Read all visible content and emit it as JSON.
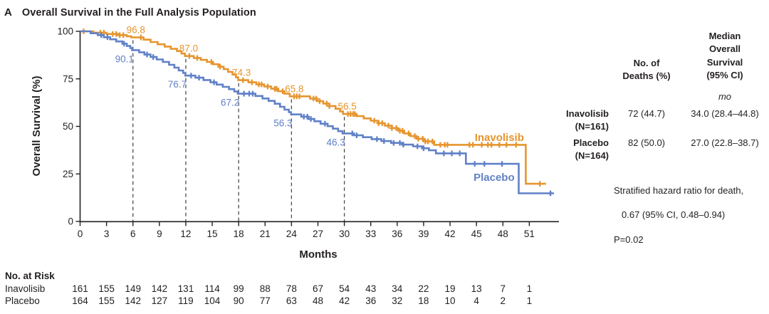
{
  "figure": {
    "panel_label": "A",
    "title": "Overall Survival in the Full Analysis Population"
  },
  "chart_data": {
    "type": "line",
    "subtype": "kaplan-meier-step",
    "title": "Overall Survival in the Full Analysis Population",
    "xlabel": "Months",
    "ylabel": "Overall Survival (%)",
    "xlim": [
      0,
      54.3
    ],
    "ylim": [
      0,
      100
    ],
    "xticks": [
      0,
      3,
      6,
      9,
      12,
      15,
      18,
      21,
      24,
      27,
      30,
      33,
      36,
      39,
      42,
      45,
      48,
      51
    ],
    "yticks": [
      0,
      25,
      50,
      75,
      100
    ],
    "grid": false,
    "dashed_reference_months": [
      6,
      12,
      18,
      24,
      30
    ],
    "series": [
      {
        "name": "Inavolisib",
        "color": "#E6952F",
        "end_month": 52.9,
        "milestone_side": "above",
        "label_pos": {
          "month": 47.6,
          "pct": 42.3
        },
        "milestones": [
          {
            "month": 6,
            "text": "96.8"
          },
          {
            "month": 12,
            "text": "87.0"
          },
          {
            "month": 18,
            "text": "74.3"
          },
          {
            "month": 24,
            "text": "65.8"
          },
          {
            "month": 30,
            "text": "56.5"
          }
        ],
        "steps": [
          [
            0,
            100
          ],
          [
            1.5,
            99.3
          ],
          [
            3,
            98.6
          ],
          [
            4.3,
            98
          ],
          [
            5.3,
            97.4
          ],
          [
            5.8,
            96.8
          ],
          [
            7.2,
            95.6
          ],
          [
            8,
            94.4
          ],
          [
            8.8,
            93.2
          ],
          [
            9.6,
            92
          ],
          [
            10.3,
            90.8
          ],
          [
            11,
            89.6
          ],
          [
            11.5,
            88.3
          ],
          [
            11.9,
            87
          ],
          [
            12.9,
            86
          ],
          [
            13.7,
            85
          ],
          [
            14.4,
            83.9
          ],
          [
            15.1,
            82.7
          ],
          [
            15.7,
            81.4
          ],
          [
            16.3,
            80.1
          ],
          [
            16.8,
            78.7
          ],
          [
            17.3,
            77.3
          ],
          [
            17.7,
            75.8
          ],
          [
            17.95,
            74.3
          ],
          [
            19.1,
            73.2
          ],
          [
            20,
            72.1
          ],
          [
            20.9,
            71
          ],
          [
            21.7,
            69.8
          ],
          [
            22.5,
            68.5
          ],
          [
            23.2,
            67.2
          ],
          [
            23.8,
            65.8
          ],
          [
            26.1,
            64.6
          ],
          [
            26.9,
            63.3
          ],
          [
            27.6,
            62
          ],
          [
            28.3,
            60.7
          ],
          [
            29,
            59.3
          ],
          [
            29.5,
            57.9
          ],
          [
            29.85,
            56.5
          ],
          [
            31.4,
            55.4
          ],
          [
            32.2,
            54.2
          ],
          [
            33,
            53
          ],
          [
            33.8,
            51.7
          ],
          [
            34.6,
            50.4
          ],
          [
            35.4,
            49.1
          ],
          [
            36.1,
            47.7
          ],
          [
            36.8,
            46.3
          ],
          [
            37.5,
            44.9
          ],
          [
            38.2,
            43.5
          ],
          [
            39,
            42.1
          ],
          [
            40.2,
            40.3
          ],
          [
            50.6,
            19.8
          ]
        ],
        "censor_times": [
          0.4,
          2.3,
          2.7,
          3.7,
          4.1,
          4.5,
          4.9,
          6.9,
          12.4,
          13.3,
          14.9,
          15.9,
          18.5,
          19.5,
          20.3,
          20.6,
          21.3,
          22.1,
          22.3,
          23,
          24.3,
          24.6,
          24.9,
          26.5,
          26.8,
          27.2,
          28,
          28.3,
          30.4,
          30.7,
          31,
          31.2,
          33.4,
          33.9,
          34.3,
          35,
          35.4,
          35.9,
          36.3,
          36.6,
          37.3,
          38,
          38.4,
          38.9,
          39.2,
          39.5,
          40,
          40.9,
          41.4,
          41.7,
          44.2,
          44.6,
          45.6,
          46.3,
          46.7,
          47.6,
          48.4,
          49.5,
          52.2
        ]
      },
      {
        "name": "Placebo",
        "color": "#6081C7",
        "end_month": 53.8,
        "milestone_side": "below",
        "label_pos": {
          "month": 47.0,
          "pct": 21.3
        },
        "milestones": [
          {
            "month": 6,
            "text": "90.1"
          },
          {
            "month": 12,
            "text": "76.7"
          },
          {
            "month": 18,
            "text": "67.2"
          },
          {
            "month": 24,
            "text": "56.3"
          },
          {
            "month": 30,
            "text": "46.3"
          }
        ],
        "steps": [
          [
            0,
            100
          ],
          [
            1.2,
            99
          ],
          [
            2,
            98
          ],
          [
            2.7,
            96.9
          ],
          [
            3.4,
            95.8
          ],
          [
            4.1,
            94.7
          ],
          [
            4.8,
            93.5
          ],
          [
            5.3,
            92.3
          ],
          [
            5.7,
            91.2
          ],
          [
            5.9,
            90.1
          ],
          [
            6.7,
            89
          ],
          [
            7.3,
            87.8
          ],
          [
            8,
            86.5
          ],
          [
            8.7,
            85.2
          ],
          [
            9.4,
            83.9
          ],
          [
            10.1,
            82.4
          ],
          [
            10.7,
            80.9
          ],
          [
            11.2,
            79.4
          ],
          [
            11.7,
            78.1
          ],
          [
            11.95,
            76.7
          ],
          [
            13.1,
            75.6
          ],
          [
            14,
            74.4
          ],
          [
            14.8,
            73.2
          ],
          [
            15.5,
            72
          ],
          [
            16.2,
            70.8
          ],
          [
            16.9,
            69.6
          ],
          [
            17.5,
            68.4
          ],
          [
            17.9,
            67.2
          ],
          [
            19.9,
            66
          ],
          [
            20.7,
            64.7
          ],
          [
            21.4,
            63.4
          ],
          [
            22.1,
            61.9
          ],
          [
            22.7,
            60.3
          ],
          [
            23.2,
            58.8
          ],
          [
            23.7,
            57.5
          ],
          [
            23.95,
            56.3
          ],
          [
            25.1,
            55.1
          ],
          [
            25.9,
            53.9
          ],
          [
            26.6,
            52.7
          ],
          [
            27.3,
            51.4
          ],
          [
            28.1,
            50.1
          ],
          [
            28.7,
            48.8
          ],
          [
            29.3,
            47.5
          ],
          [
            29.8,
            46.3
          ],
          [
            31.1,
            45.3
          ],
          [
            32.1,
            44.3
          ],
          [
            33.1,
            43.3
          ],
          [
            34.2,
            42.3
          ],
          [
            35.3,
            41.3
          ],
          [
            36.6,
            40.4
          ],
          [
            37.8,
            39.5
          ],
          [
            38.8,
            38.5
          ],
          [
            39.6,
            37.4
          ],
          [
            40.4,
            35.8
          ],
          [
            43.8,
            30.3
          ],
          [
            49.8,
            14.8
          ]
        ],
        "censor_times": [
          2.4,
          3.1,
          5,
          7.6,
          8.3,
          12.6,
          13.5,
          15.2,
          18.6,
          19.2,
          19.6,
          25.4,
          25.8,
          26.2,
          27.8,
          30.9,
          31.4,
          33.7,
          34.5,
          35.6,
          36.3,
          36.7,
          38.3,
          39,
          41.3,
          42.2,
          43.1,
          44.8,
          45.9,
          47.9,
          53.4
        ]
      }
    ]
  },
  "stats": {
    "deaths_header": "No. of\nDeaths (%)",
    "median_header": "Median\nOverall\nSurvival\n(95% CI)",
    "unit": "mo",
    "rows": [
      {
        "label": "Inavolisib\n(N=161)",
        "deaths": "72 (44.7)",
        "median": "34.0 (28.4–44.8)"
      },
      {
        "label": "Placebo\n(N=164)",
        "deaths": "82 (50.0)",
        "median": "27.0 (22.8–38.7)"
      }
    ],
    "hazard_line1": "Stratified hazard ratio for death,",
    "hazard_line2": "0.67 (95% CI, 0.48–0.94)",
    "hazard_line3": "P=0.02"
  },
  "at_risk": {
    "header": "No. at Risk",
    "months": [
      0,
      3,
      6,
      9,
      12,
      15,
      18,
      21,
      24,
      27,
      30,
      33,
      36,
      39,
      42,
      45,
      48,
      51
    ],
    "rows": [
      {
        "label": "Inavolisib",
        "values": [
          161,
          155,
          149,
          142,
          131,
          114,
          99,
          88,
          78,
          67,
          54,
          43,
          34,
          22,
          19,
          13,
          7,
          1
        ]
      },
      {
        "label": "Placebo",
        "values": [
          164,
          155,
          142,
          127,
          119,
          104,
          90,
          77,
          63,
          48,
          42,
          36,
          32,
          18,
          10,
          4,
          2,
          1
        ]
      }
    ]
  },
  "colors": {
    "inavolisib": "#E6952F",
    "placebo": "#6081C7",
    "axis_text": "#231F20",
    "dashed_line": "#4d4d4d"
  }
}
